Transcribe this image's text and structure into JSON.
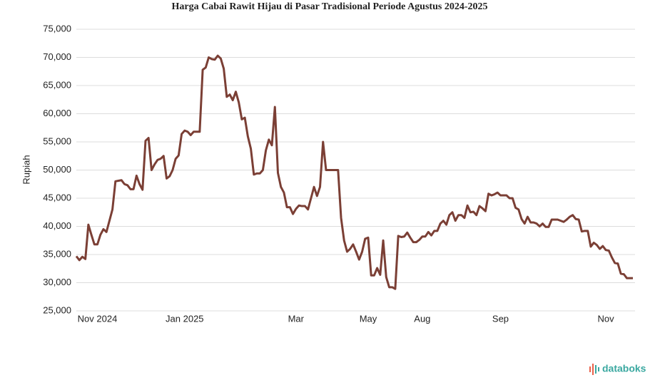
{
  "chart_data": {
    "type": "line",
    "title": "Harga Cabai Rawit Hijau di Pasar Tradisional Periode Agustus 2024-2025",
    "y_label": "Rupiah",
    "brand": "databoks",
    "color": "#7b3f35",
    "grid": true,
    "categories": [
      null,
      null,
      null,
      null,
      null,
      null,
      null,
      "Nov 2024",
      null,
      null,
      null,
      null,
      null,
      null,
      null,
      null,
      null,
      null,
      null,
      null,
      null,
      null,
      null,
      null,
      null,
      null,
      null,
      null,
      null,
      null,
      null,
      null,
      null,
      null,
      null,
      null,
      "Jan 2025",
      null,
      null,
      null,
      null,
      null,
      null,
      null,
      null,
      null,
      null,
      null,
      null,
      null,
      null,
      null,
      null,
      null,
      null,
      null,
      null,
      null,
      null,
      null,
      null,
      null,
      null,
      null,
      null,
      null,
      null,
      null,
      null,
      null,
      null,
      null,
      null,
      "Mar",
      null,
      null,
      null,
      null,
      null,
      null,
      null,
      null,
      null,
      null,
      null,
      null,
      null,
      null,
      null,
      null,
      null,
      null,
      null,
      null,
      null,
      null,
      null,
      "May",
      null,
      null,
      null,
      null,
      null,
      null,
      null,
      null,
      null,
      null,
      null,
      null,
      null,
      null,
      null,
      null,
      null,
      "Aug",
      null,
      null,
      null,
      null,
      null,
      null,
      null,
      null,
      null,
      null,
      null,
      null,
      null,
      null,
      null,
      null,
      null,
      null,
      null,
      null,
      null,
      null,
      null,
      null,
      null,
      "Sep",
      null,
      null,
      null,
      null,
      null,
      null,
      null,
      null,
      null,
      null,
      null,
      null,
      null,
      null,
      null,
      null,
      null,
      null,
      null,
      null,
      null,
      null,
      null,
      null,
      null,
      null,
      null,
      null,
      null,
      null,
      null,
      null,
      null,
      null,
      "Nov",
      null,
      null,
      null,
      null,
      null,
      null,
      null,
      null,
      null
    ],
    "values": [
      34700,
      34000,
      34600,
      34200,
      40300,
      38500,
      36800,
      36800,
      38500,
      39500,
      39000,
      41000,
      43000,
      48000,
      48100,
      48200,
      47500,
      47300,
      46600,
      46600,
      49000,
      47500,
      46500,
      55200,
      55700,
      50000,
      51000,
      51800,
      52000,
      52500,
      48500,
      48900,
      50000,
      52000,
      52600,
      56400,
      57000,
      56800,
      56200,
      56800,
      56800,
      56800,
      67800,
      68200,
      70000,
      69700,
      69600,
      70300,
      69800,
      68000,
      63000,
      63400,
      62400,
      63900,
      62000,
      59000,
      59300,
      56000,
      53800,
      49200,
      49400,
      49400,
      50000,
      53500,
      55400,
      54400,
      61200,
      49500,
      47000,
      46000,
      43400,
      43400,
      42200,
      43100,
      43700,
      43600,
      43600,
      43000,
      45000,
      47000,
      45400,
      47000,
      55000,
      50000,
      50000,
      50000,
      50000,
      50000,
      41500,
      37500,
      35500,
      36000,
      36800,
      35500,
      34100,
      35500,
      37800,
      38000,
      31300,
      31300,
      32600,
      31400,
      37500,
      31000,
      29200,
      29200,
      28900,
      38300,
      38100,
      38200,
      38900,
      38000,
      37200,
      37200,
      37600,
      38200,
      38200,
      39000,
      38400,
      39200,
      39200,
      40500,
      41000,
      40300,
      42000,
      42500,
      41000,
      42000,
      42000,
      41500,
      43700,
      42500,
      42600,
      42000,
      43600,
      43200,
      42700,
      45800,
      45500,
      45700,
      46000,
      45500,
      45500,
      45500,
      45000,
      45000,
      43300,
      43000,
      41300,
      40500,
      41700,
      40700,
      40700,
      40500,
      40000,
      40500,
      39900,
      39900,
      41200,
      41200,
      41200,
      41000,
      40800,
      41200,
      41700,
      42000,
      41300,
      41200,
      39100,
      39200,
      39200,
      36400,
      37100,
      36700,
      36000,
      36500,
      35800,
      35700,
      34500,
      33500,
      33400,
      31600,
      31500,
      30800,
      30800,
      30800
    ],
    "ylim": [
      25000,
      75000
    ],
    "yticks": [
      {
        "value": 25000,
        "label": "25,000"
      },
      {
        "value": 30000,
        "label": "30,000"
      },
      {
        "value": 35000,
        "label": "35,000"
      },
      {
        "value": 40000,
        "label": "40,000"
      },
      {
        "value": 45000,
        "label": "45,000"
      },
      {
        "value": 50000,
        "label": "50,000"
      },
      {
        "value": 55000,
        "label": "55,000"
      },
      {
        "value": 60000,
        "label": "60,000"
      },
      {
        "value": 65000,
        "label": "65,000"
      },
      {
        "value": 70000,
        "label": "70,000"
      },
      {
        "value": 75000,
        "label": "75,000"
      }
    ]
  }
}
